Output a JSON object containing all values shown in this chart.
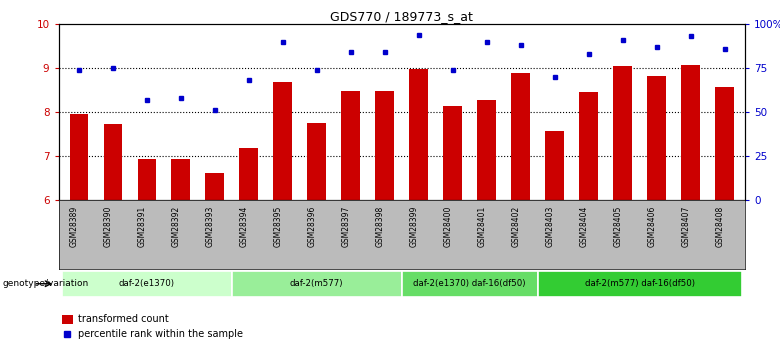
{
  "title": "GDS770 / 189773_s_at",
  "samples": [
    "GSM28389",
    "GSM28390",
    "GSM28391",
    "GSM28392",
    "GSM28393",
    "GSM28394",
    "GSM28395",
    "GSM28396",
    "GSM28397",
    "GSM28398",
    "GSM28399",
    "GSM28400",
    "GSM28401",
    "GSM28402",
    "GSM28403",
    "GSM28404",
    "GSM28405",
    "GSM28406",
    "GSM28407",
    "GSM28408"
  ],
  "bar_values": [
    7.95,
    7.72,
    6.93,
    6.93,
    6.62,
    7.18,
    8.68,
    7.75,
    8.47,
    8.48,
    8.98,
    8.15,
    8.28,
    8.88,
    7.58,
    8.45,
    9.05,
    8.82,
    9.08,
    8.58
  ],
  "dot_values": [
    74,
    75,
    57,
    58,
    51,
    68,
    90,
    74,
    84,
    84,
    94,
    74,
    90,
    88,
    70,
    83,
    91,
    87,
    93,
    86
  ],
  "ylim_left": [
    6,
    10
  ],
  "ylim_right": [
    0,
    100
  ],
  "yticks_left": [
    6,
    7,
    8,
    9,
    10
  ],
  "yticks_right": [
    0,
    25,
    50,
    75,
    100
  ],
  "ytick_labels_right": [
    "0",
    "25",
    "50",
    "75",
    "100%"
  ],
  "bar_color": "#cc0000",
  "dot_color": "#0000cc",
  "grid_color": "#000000",
  "groups": [
    {
      "label": "daf-2(e1370)",
      "start": 0,
      "end": 4,
      "color": "#ccffcc"
    },
    {
      "label": "daf-2(m577)",
      "start": 5,
      "end": 9,
      "color": "#99ee99"
    },
    {
      "label": "daf-2(e1370) daf-16(df50)",
      "start": 10,
      "end": 13,
      "color": "#66dd66"
    },
    {
      "label": "daf-2(m577) daf-16(df50)",
      "start": 14,
      "end": 19,
      "color": "#33cc33"
    }
  ],
  "legend_bar_label": "transformed count",
  "legend_dot_label": "percentile rank within the sample",
  "xlabel_genotype": "genotype/variation",
  "background_color": "#ffffff",
  "tick_bg_color": "#bbbbbb",
  "figwidth": 7.8,
  "figheight": 3.45,
  "dpi": 100
}
